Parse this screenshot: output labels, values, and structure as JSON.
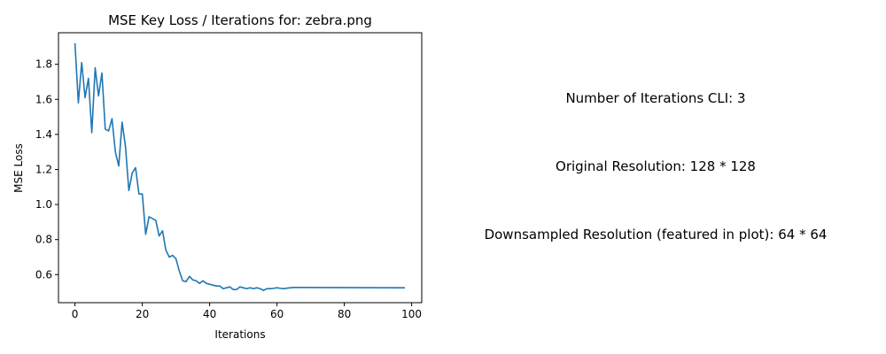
{
  "chart_data": {
    "type": "line",
    "title": "MSE Key Loss / Iterations for: zebra.png",
    "xlabel": "Iterations",
    "ylabel": "MSE Loss",
    "xlim": [
      -4.9,
      103
    ],
    "ylim": [
      0.44,
      1.98
    ],
    "xticks": [
      0,
      20,
      40,
      60,
      80,
      100
    ],
    "yticks": [
      0.6,
      0.8,
      1.0,
      1.2,
      1.4,
      1.6,
      1.8
    ],
    "grid": false,
    "series": [
      {
        "color": "#1f77b4",
        "x": [
          0,
          1,
          2,
          3,
          4,
          5,
          6,
          7,
          8,
          9,
          10,
          11,
          12,
          13,
          14,
          15,
          16,
          17,
          18,
          19,
          20,
          21,
          22,
          23,
          24,
          25,
          26,
          27,
          28,
          29,
          30,
          31,
          32,
          33,
          34,
          35,
          36,
          37,
          38,
          39,
          40,
          41,
          42,
          43,
          44,
          45,
          46,
          47,
          48,
          49,
          50,
          51,
          52,
          53,
          54,
          55,
          56,
          57,
          58,
          59,
          60,
          61,
          62,
          63,
          64,
          65,
          66,
          98
        ],
        "y": [
          1.92,
          1.58,
          1.81,
          1.61,
          1.72,
          1.41,
          1.78,
          1.62,
          1.75,
          1.43,
          1.42,
          1.49,
          1.3,
          1.22,
          1.47,
          1.33,
          1.08,
          1.18,
          1.21,
          1.06,
          1.06,
          0.83,
          0.93,
          0.92,
          0.91,
          0.82,
          0.85,
          0.74,
          0.7,
          0.71,
          0.69,
          0.62,
          0.565,
          0.56,
          0.59,
          0.57,
          0.565,
          0.55,
          0.565,
          0.55,
          0.545,
          0.54,
          0.535,
          0.535,
          0.52,
          0.525,
          0.53,
          0.515,
          0.515,
          0.53,
          0.525,
          0.52,
          0.525,
          0.52,
          0.525,
          0.52,
          0.51,
          0.52,
          0.52,
          0.522,
          0.525,
          0.522,
          0.52,
          0.523,
          0.525,
          0.527,
          0.527,
          0.525
        ]
      }
    ]
  },
  "info": [
    "Number of Iterations CLI: 3",
    "Original Resolution: 128 * 128",
    "Downsampled Resolution (featured in plot): 64 * 64"
  ]
}
